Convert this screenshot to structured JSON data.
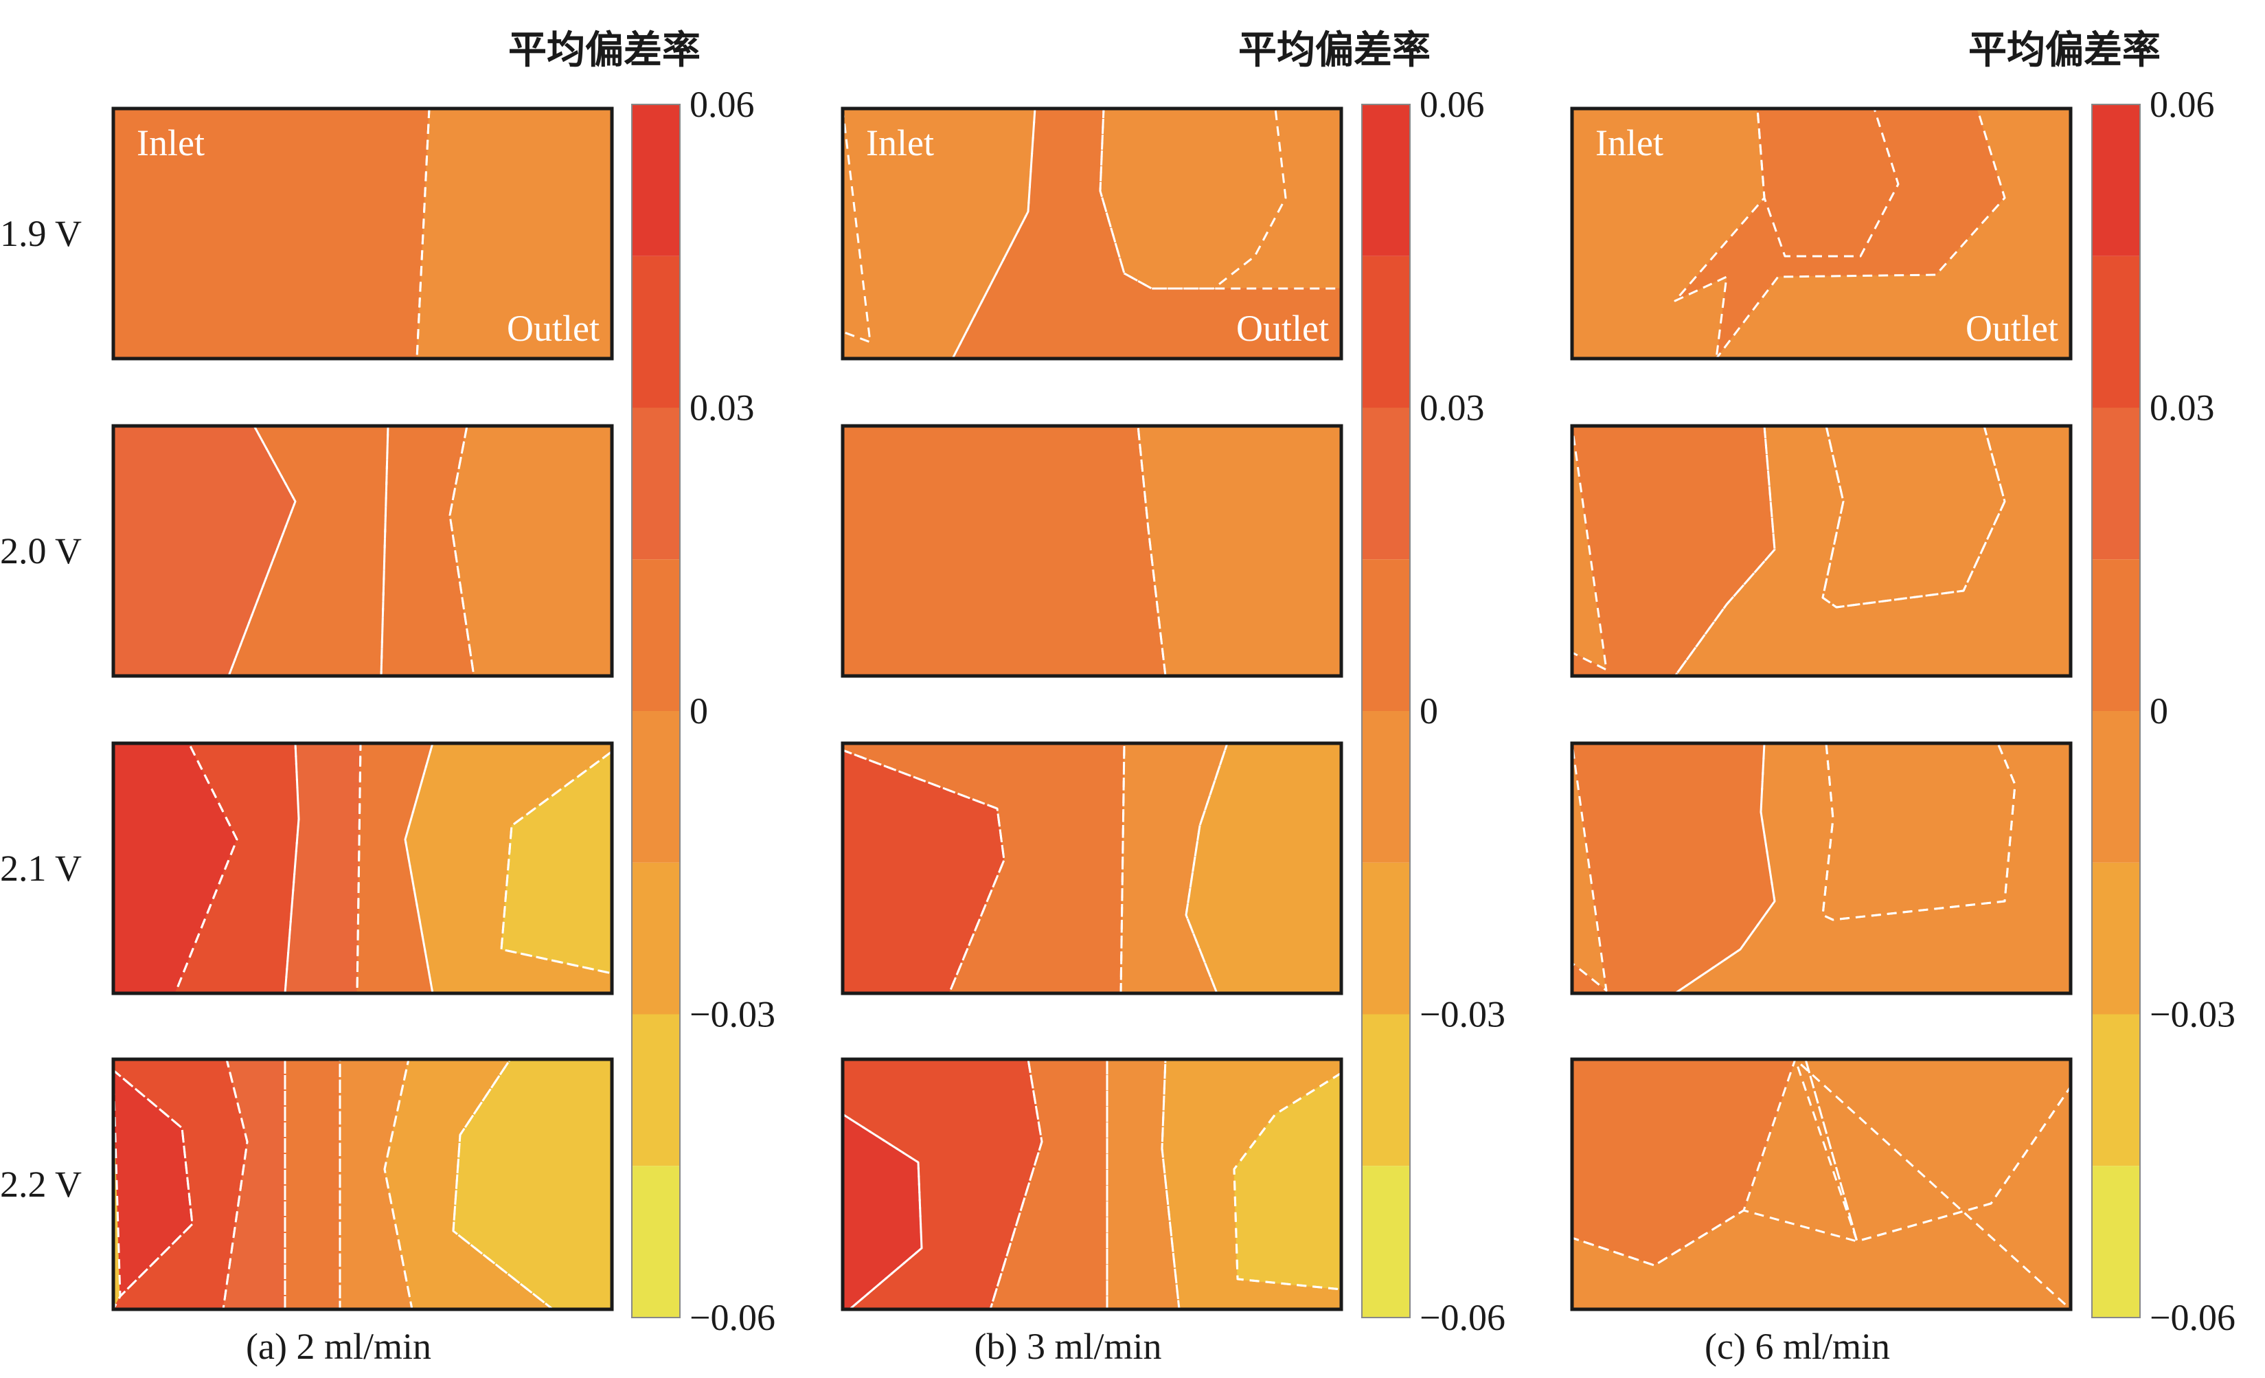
{
  "chart_data": {
    "type": "heatmap",
    "colorbar": {
      "title": "平均偏差率",
      "ticks": [
        "0.06",
        "0.03",
        "0",
        "−0.03",
        "−0.06"
      ],
      "range": [
        -0.06,
        0.06
      ],
      "levels": [
        {
          "from": 0.045,
          "to": 0.06,
          "color": "#e23b2e"
        },
        {
          "from": 0.03,
          "to": 0.045,
          "color": "#e6502f"
        },
        {
          "from": 0.015,
          "to": 0.03,
          "color": "#e9683a"
        },
        {
          "from": 0.0,
          "to": 0.015,
          "color": "#ec7b37"
        },
        {
          "from": -0.015,
          "to": 0.0,
          "color": "#ef903b"
        },
        {
          "from": -0.03,
          "to": -0.015,
          "color": "#f1a43a"
        },
        {
          "from": -0.045,
          "to": -0.03,
          "color": "#f0c43e"
        },
        {
          "from": -0.06,
          "to": -0.045,
          "color": "#e9e24d"
        }
      ]
    },
    "row_labels": [
      "1.9 V",
      "2.0 V",
      "2.1 V",
      "2.2 V"
    ],
    "panels": [
      {
        "caption": "(a) 2 ml/min",
        "flow_rate": "2 ml/min"
      },
      {
        "caption": "(b) 3 ml/min",
        "flow_rate": "3 ml/min"
      },
      {
        "caption": "(c) 6 ml/min",
        "flow_rate": "6 ml/min"
      }
    ],
    "inlet_label": "Inlet",
    "outlet_label": "Outlet",
    "zone_levels": [
      [
        [
          0.0075,
          -0.0075
        ],
        [
          0.0225,
          0.0075,
          0.0075,
          -0.0075
        ],
        [
          0.0525,
          0.0375,
          0.0225,
          0.0075,
          -0.0225,
          -0.0375
        ],
        [
          0.0525,
          0.0375,
          0.0225,
          0.0075,
          -0.0075,
          -0.0225,
          -0.0375
        ]
      ],
      [
        [
          -0.0075,
          0.0075,
          -0.0075
        ],
        [
          0.0075,
          -0.0075
        ],
        [
          0.0375,
          0.0075,
          -0.0075,
          -0.0225
        ],
        [
          0.0525,
          0.0375,
          0.0075,
          -0.0075,
          -0.0225,
          -0.0375
        ]
      ],
      [
        [
          -0.0075,
          0.0075,
          -0.0075,
          0.0075
        ],
        [
          0.0075,
          -0.0075,
          -0.0075
        ],
        [
          0.0075,
          -0.0075,
          -0.0075
        ],
        [
          0.0075,
          -0.0075,
          -0.0075
        ]
      ]
    ]
  }
}
